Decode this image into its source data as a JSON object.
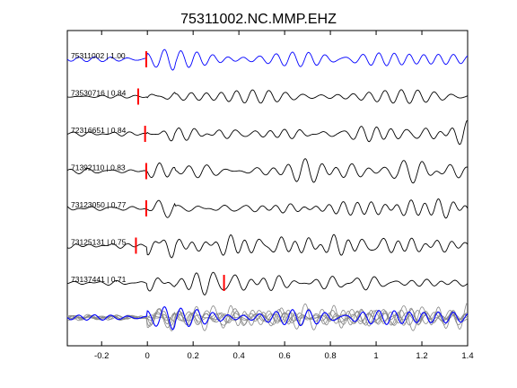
{
  "chart_data": {
    "type": "line",
    "title": "75311002.NC.MMP.EHZ",
    "xlabel": "",
    "ylabel": "",
    "xlim": [
      -0.35,
      1.4
    ],
    "xticks": [
      -0.2,
      0,
      0.2,
      0.4,
      0.6,
      0.8,
      1,
      1.2,
      1.4
    ],
    "xtick_labels": [
      "-0.2",
      "0",
      "0.2",
      "0.4",
      "0.6",
      "0.8",
      "1",
      "1.2",
      "1.4"
    ],
    "grid": false,
    "traces": [
      {
        "label": "75311002 | 1.00",
        "pick": -0.005,
        "color": "#0000ff",
        "seed": 1
      },
      {
        "label": "73530716 | 0.84",
        "pick": -0.04,
        "color": "#000000",
        "seed": 2
      },
      {
        "label": "72316651 | 0.84",
        "pick": -0.01,
        "color": "#000000",
        "seed": 3
      },
      {
        "label": "71392110 | 0.83",
        "pick": -0.005,
        "color": "#000000",
        "seed": 4
      },
      {
        "label": "73123050 | 0.77",
        "pick": -0.005,
        "color": "#000000",
        "seed": 5
      },
      {
        "label": "73125131 | 0.75",
        "pick": -0.05,
        "color": "#000000",
        "seed": 6
      },
      {
        "label": "73137441 | 0.71",
        "pick": 0.335,
        "color": "#000000",
        "seed": 7
      }
    ],
    "stack": {
      "overlay_colors": [
        "#888888",
        "#0000ff"
      ]
    },
    "pick_color": "#ff0000"
  }
}
